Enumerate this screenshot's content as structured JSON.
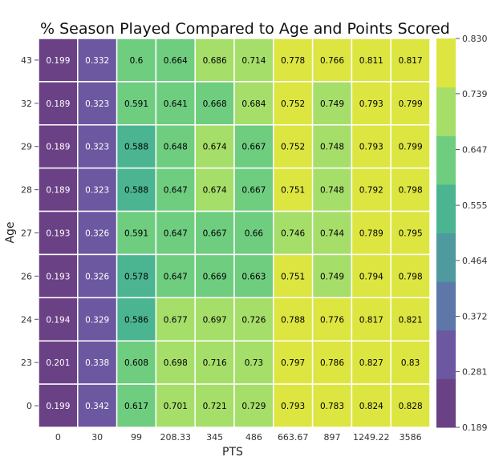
{
  "chart_data": {
    "type": "heatmap",
    "title": "% Season Played Compared to Age and Points Scored",
    "xlabel": "PTS",
    "ylabel": "Age",
    "x_categories": [
      "0",
      "30",
      "99",
      "208.33",
      "345",
      "486",
      "663.67",
      "897",
      "1249.22",
      "3586"
    ],
    "y_categories": [
      "43",
      "32",
      "29",
      "28",
      "27",
      "26",
      "24",
      "23",
      "0"
    ],
    "values": [
      [
        0.199,
        0.332,
        0.6,
        0.664,
        0.686,
        0.714,
        0.778,
        0.766,
        0.811,
        0.817
      ],
      [
        0.189,
        0.323,
        0.591,
        0.641,
        0.668,
        0.684,
        0.752,
        0.749,
        0.793,
        0.799
      ],
      [
        0.189,
        0.323,
        0.588,
        0.648,
        0.674,
        0.667,
        0.752,
        0.748,
        0.793,
        0.799
      ],
      [
        0.189,
        0.323,
        0.588,
        0.647,
        0.674,
        0.667,
        0.751,
        0.748,
        0.792,
        0.798
      ],
      [
        0.193,
        0.326,
        0.591,
        0.647,
        0.667,
        0.66,
        0.746,
        0.744,
        0.789,
        0.795
      ],
      [
        0.193,
        0.326,
        0.578,
        0.647,
        0.669,
        0.663,
        0.751,
        0.749,
        0.794,
        0.798
      ],
      [
        0.194,
        0.329,
        0.586,
        0.677,
        0.697,
        0.726,
        0.788,
        0.776,
        0.817,
        0.821
      ],
      [
        0.201,
        0.338,
        0.608,
        0.698,
        0.716,
        0.73,
        0.797,
        0.786,
        0.827,
        0.83
      ],
      [
        0.199,
        0.342,
        0.617,
        0.701,
        0.721,
        0.729,
        0.793,
        0.783,
        0.824,
        0.828
      ]
    ],
    "colorbar": {
      "ticks": [
        "0.189",
        "0.281",
        "0.372",
        "0.464",
        "0.555",
        "0.647",
        "0.739",
        "0.830"
      ],
      "min": 0.189,
      "max": 0.83,
      "colors": [
        "#6b4186",
        "#6b58a0",
        "#5d77a8",
        "#4f9a9f",
        "#4bb591",
        "#6fcd80",
        "#a6de6a",
        "#dde541"
      ]
    },
    "cell_text_colors": {
      "dark": "#ffffff",
      "light": "#000000"
    },
    "grid": true,
    "legend": "colorbar-right"
  }
}
